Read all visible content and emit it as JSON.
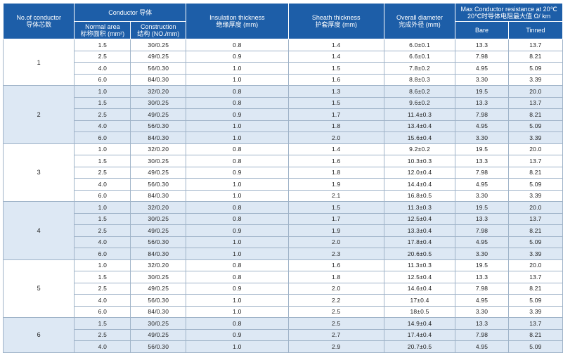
{
  "header": {
    "no_conductor": [
      "No.of conductor",
      "导体芯数"
    ],
    "conductor": "Conductor 导体",
    "normal_area": [
      "Normal area",
      "标称面积 (mm²)"
    ],
    "construction": [
      "Construction",
      "结构 (NO./mm)"
    ],
    "insulation": [
      "Insulation thickness",
      "绝缘厚度 (mm)"
    ],
    "sheath": [
      "Sheath thickness",
      "护套厚度 (mm)"
    ],
    "overall": [
      "Overall diameter",
      "完成外径 (mm)"
    ],
    "resistance": [
      "Max Conductor resistance at 20℃",
      "20℃时导体电阻最大值 Ω/ km"
    ],
    "bare": "Bare",
    "tinned": "Tinned"
  },
  "groups": [
    {
      "count": "1",
      "rows": [
        [
          "1.5",
          "30/0.25",
          "0.8",
          "1.4",
          "6.0±0.1",
          "13.3",
          "13.7"
        ],
        [
          "2.5",
          "49/0.25",
          "0.9",
          "1.4",
          "6.6±0.1",
          "7.98",
          "8.21"
        ],
        [
          "4.0",
          "56/0.30",
          "1.0",
          "1.5",
          "7.8±0.2",
          "4.95",
          "5.09"
        ],
        [
          "6.0",
          "84/0.30",
          "1.0",
          "1.6",
          "8.8±0.3",
          "3.30",
          "3.39"
        ]
      ]
    },
    {
      "count": "2",
      "rows": [
        [
          "1.0",
          "32/0.20",
          "0.8",
          "1.3",
          "8.6±0.2",
          "19.5",
          "20.0"
        ],
        [
          "1.5",
          "30/0.25",
          "0.8",
          "1.5",
          "9.6±0.2",
          "13.3",
          "13.7"
        ],
        [
          "2.5",
          "49/0.25",
          "0.9",
          "1.7",
          "11.4±0.3",
          "7.98",
          "8.21"
        ],
        [
          "4.0",
          "56/0.30",
          "1.0",
          "1.8",
          "13.4±0.4",
          "4.95",
          "5.09"
        ],
        [
          "6.0",
          "84/0.30",
          "1.0",
          "2.0",
          "15.6±0.4",
          "3.30",
          "3.39"
        ]
      ]
    },
    {
      "count": "3",
      "rows": [
        [
          "1.0",
          "32/0.20",
          "0.8",
          "1.4",
          "9.2±0.2",
          "19.5",
          "20.0"
        ],
        [
          "1.5",
          "30/0.25",
          "0.8",
          "1.6",
          "10.3±0.3",
          "13.3",
          "13.7"
        ],
        [
          "2.5",
          "49/0.25",
          "0.9",
          "1.8",
          "12.0±0.4",
          "7.98",
          "8.21"
        ],
        [
          "4.0",
          "56/0.30",
          "1.0",
          "1.9",
          "14.4±0.4",
          "4.95",
          "5.09"
        ],
        [
          "6.0",
          "84/0.30",
          "1.0",
          "2.1",
          "16.8±0.5",
          "3.30",
          "3.39"
        ]
      ]
    },
    {
      "count": "4",
      "rows": [
        [
          "1.0",
          "32/0.20",
          "0.8",
          "1.5",
          "11.3±0.3",
          "19.5",
          "20.0"
        ],
        [
          "1.5",
          "30/0.25",
          "0.8",
          "1.7",
          "12.5±0.4",
          "13.3",
          "13.7"
        ],
        [
          "2.5",
          "49/0.25",
          "0.9",
          "1.9",
          "13.3±0.4",
          "7.98",
          "8.21"
        ],
        [
          "4.0",
          "56/0.30",
          "1.0",
          "2.0",
          "17.8±0.4",
          "4.95",
          "5.09"
        ],
        [
          "6.0",
          "84/0.30",
          "1.0",
          "2.3",
          "20.6±0.5",
          "3.30",
          "3.39"
        ]
      ]
    },
    {
      "count": "5",
      "rows": [
        [
          "1.0",
          "32/0.20",
          "0.8",
          "1.6",
          "11.3±0.3",
          "19.5",
          "20.0"
        ],
        [
          "1.5",
          "30/0.25",
          "0.8",
          "1.8",
          "12.5±0.4",
          "13.3",
          "13.7"
        ],
        [
          "2.5",
          "49/0.25",
          "0.9",
          "2.0",
          "14.6±0.4",
          "7.98",
          "8.21"
        ],
        [
          "4.0",
          "56/0.30",
          "1.0",
          "2.2",
          "17±0.4",
          "4.95",
          "5.09"
        ],
        [
          "6.0",
          "84/0.30",
          "1.0",
          "2.5",
          "18±0.5",
          "3.30",
          "3.39"
        ]
      ]
    },
    {
      "count": "6",
      "rows": [
        [
          "1.5",
          "30/0.25",
          "0.8",
          "2.5",
          "14.9±0.4",
          "13.3",
          "13.7"
        ],
        [
          "2.5",
          "49/0.25",
          "0.9",
          "2.7",
          "17.4±0.4",
          "7.98",
          "8.21"
        ],
        [
          "4.0",
          "56/0.30",
          "1.0",
          "2.9",
          "20.7±0.5",
          "4.95",
          "5.09"
        ]
      ]
    }
  ],
  "colors": {
    "header_bg": "#1d5ea8",
    "band_bg": "#dde8f4",
    "border": "#9fb3c8"
  }
}
